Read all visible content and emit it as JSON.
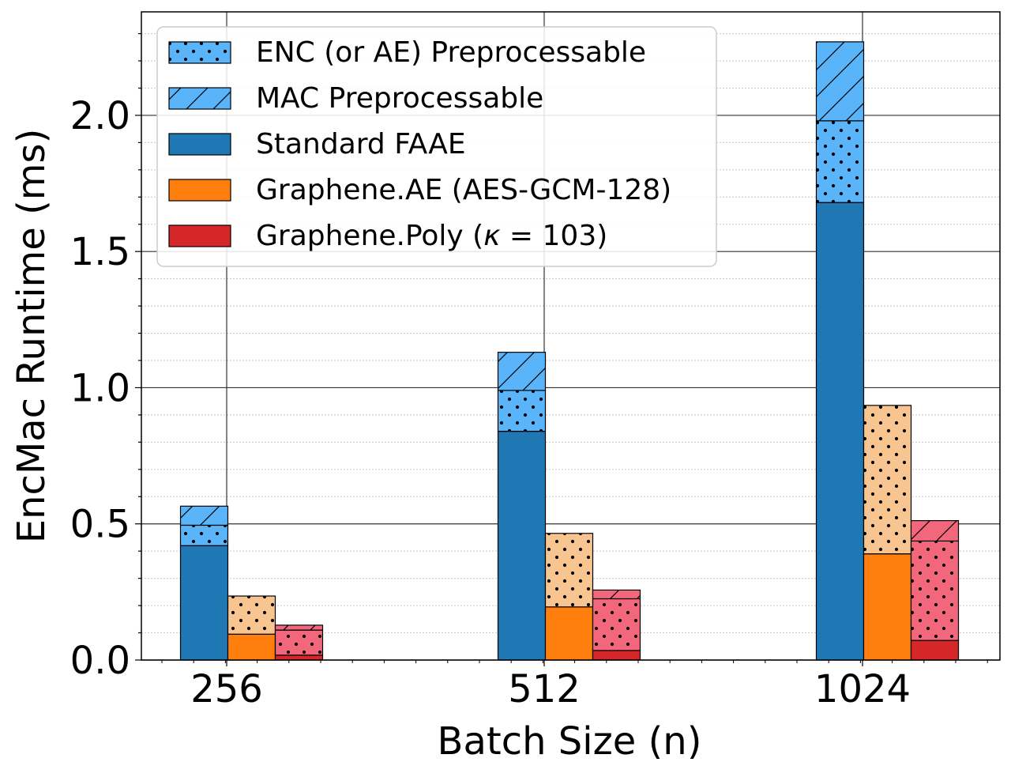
{
  "chart_data": {
    "type": "bar",
    "stacked": true,
    "grouped": true,
    "categories": [
      "256",
      "512",
      "1024"
    ],
    "xlabel": "Batch Size (n)",
    "ylabel": "EncMac Runtime (ms)",
    "ylim": [
      0,
      2.38
    ],
    "yticks": [
      "0.0",
      "0.5",
      "1.0",
      "1.5",
      "2.0"
    ],
    "grid": true,
    "legend_position": "top-left",
    "legend": [
      {
        "label": "ENC (or AE) Preprocessable",
        "pattern": "dots",
        "color": "#5ab4f9"
      },
      {
        "label": "MAC Preprocessable",
        "pattern": "hatch",
        "color": "#5ab4f9"
      },
      {
        "label": "Standard FAAE",
        "pattern": "solid",
        "color": "#1f77b4"
      },
      {
        "label": "Graphene.AE (AES-GCM-128)",
        "pattern": "solid",
        "color": "#ff7f0e"
      },
      {
        "label_prefix": "Graphene.Poly (",
        "label_symbol": "κ",
        "label_suffix": " = 103)",
        "pattern": "solid",
        "color": "#d62728"
      }
    ],
    "groups": [
      {
        "name": "Standard FAAE",
        "base_color": "#1f77b4",
        "light_color": "#5ab4f9",
        "base": [
          0.42,
          0.84,
          1.68
        ],
        "enc_preprocessable": [
          0.075,
          0.15,
          0.3
        ],
        "mac_preprocessable": [
          0.07,
          0.14,
          0.29
        ]
      },
      {
        "name": "Graphene.AE (AES-GCM-128)",
        "base_color": "#ff7f0e",
        "light_color": "#f8c590",
        "base": [
          0.095,
          0.195,
          0.39
        ],
        "enc_preprocessable": [
          0.14,
          0.27,
          0.545
        ],
        "mac_preprocessable": [
          0,
          0,
          0
        ]
      },
      {
        "name": "Graphene.Poly (κ = 103)",
        "base_color": "#d62728",
        "light_color": "#f2677b",
        "base": [
          0.018,
          0.035,
          0.072
        ],
        "enc_preprocessable": [
          0.092,
          0.19,
          0.365
        ],
        "mac_preprocessable": [
          0.018,
          0.032,
          0.075
        ]
      }
    ]
  }
}
